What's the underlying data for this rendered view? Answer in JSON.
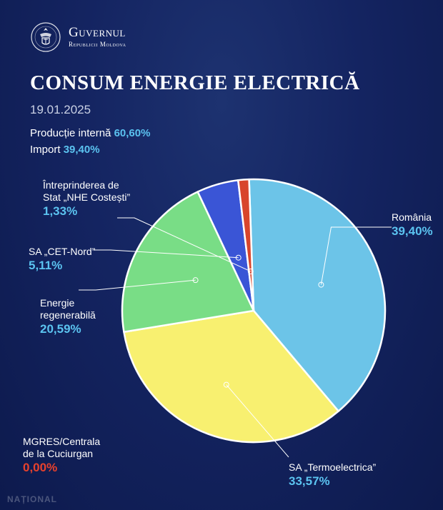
{
  "header": {
    "org_name": "Guvernul",
    "org_subtitle": "Republicii Moldova",
    "seal_icon": "moldova-coat-of-arms-icon"
  },
  "title": "CONSUM ENERGIE ELECTRICĂ",
  "date": "19.01.2025",
  "summary": {
    "domestic_label": "Producție internă",
    "domestic_value": "60,60%",
    "import_label": "Import",
    "import_value": "39,40%"
  },
  "watermark": "NAȚIONAL",
  "chart_data": {
    "type": "pie",
    "title": "CONSUM ENERGIE ELECTRICĂ",
    "slices": [
      {
        "name": "România",
        "label_lines": [
          "România"
        ],
        "value": 39.4,
        "display": "39,40%",
        "color": "#6cc4e8"
      },
      {
        "name": "SA „Termoelectrica”",
        "label_lines": [
          "SA „Termoelectrica”"
        ],
        "value": 33.57,
        "display": "33,57%",
        "color": "#f8f070"
      },
      {
        "name": "Energie regenerabilă",
        "label_lines": [
          "Energie",
          "regenerabilă"
        ],
        "value": 20.59,
        "display": "20,59%",
        "color": "#79dd86"
      },
      {
        "name": "SA „CET-Nord”",
        "label_lines": [
          "SA „CET-Nord”"
        ],
        "value": 5.11,
        "display": "5,11%",
        "color": "#3a55d6"
      },
      {
        "name": "Întreprinderea de Stat „NHE Costești”",
        "label_lines": [
          "Întreprinderea de",
          "Stat „NHE Costești”"
        ],
        "value": 1.33,
        "display": "1,33%",
        "color": "#d8452c"
      },
      {
        "name": "MGRES/Centrala de la Cuciurgan",
        "label_lines": [
          "MGRES/Centrala",
          "de la Cuciurgan"
        ],
        "value": 0.0,
        "display": "0,00%",
        "color": "#e8412c"
      }
    ]
  }
}
